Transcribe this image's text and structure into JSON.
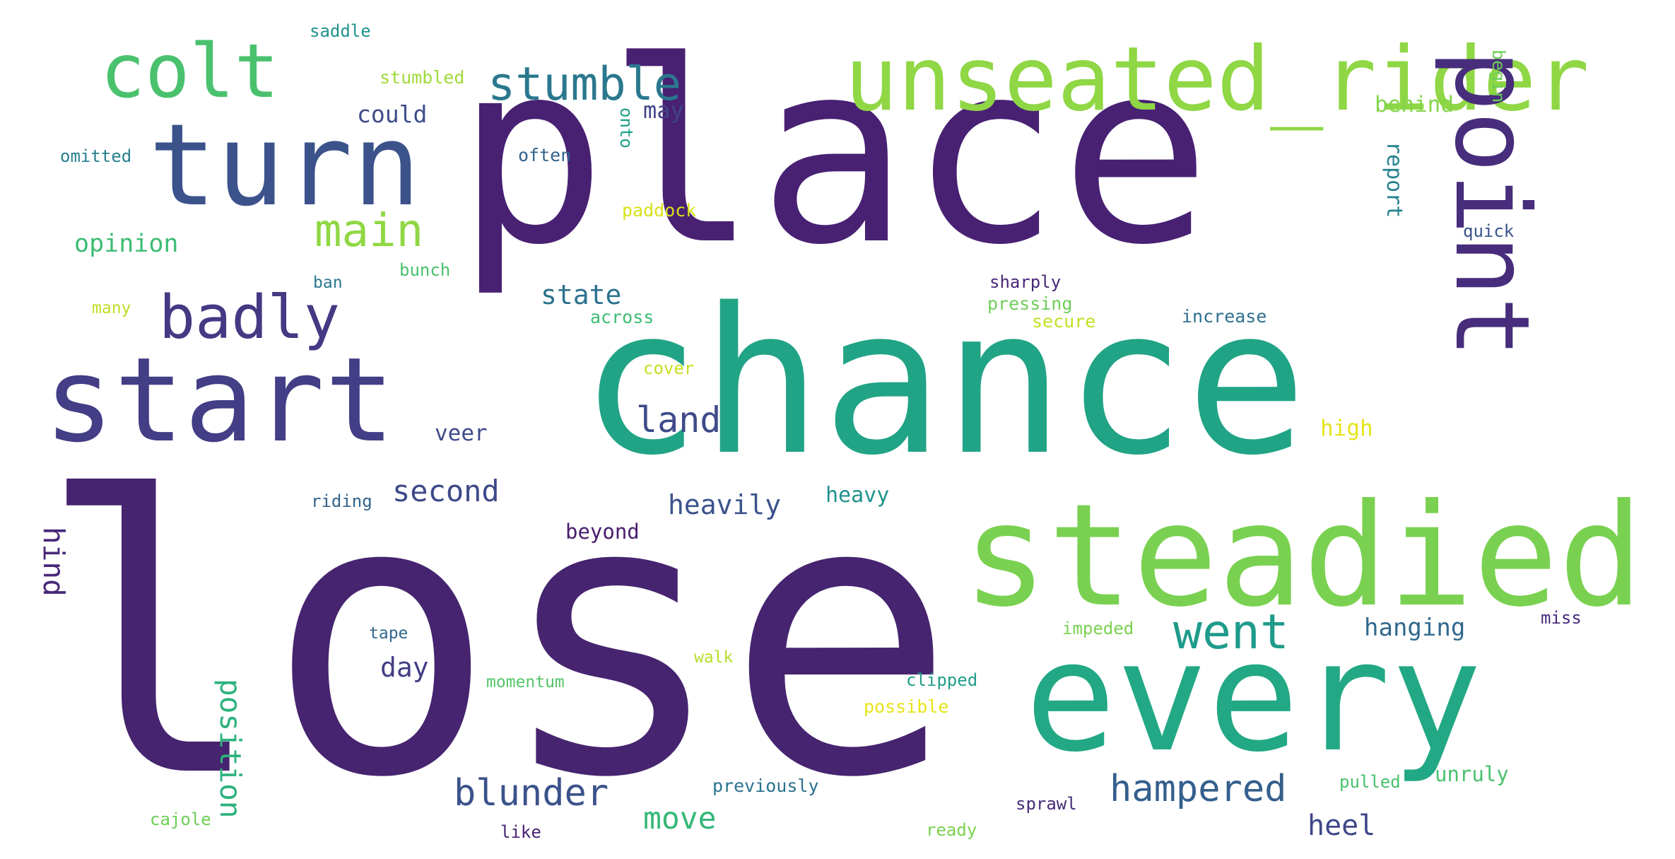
{
  "words": [
    {
      "text": "lose",
      "color": "#46246f"
    },
    {
      "text": "place",
      "color": "#482173"
    },
    {
      "text": "chance",
      "color": "#21a386"
    },
    {
      "text": "steadied",
      "color": "#7ad151"
    },
    {
      "text": "every",
      "color": "#22a884"
    },
    {
      "text": "start",
      "color": "#433e85"
    },
    {
      "text": "turn",
      "color": "#3b528b"
    },
    {
      "text": "unseated_rider",
      "color": "#8fd744"
    },
    {
      "text": "point",
      "color": "#472d7b"
    },
    {
      "text": "colt",
      "color": "#4ac16d"
    },
    {
      "text": "badly",
      "color": "#443983"
    },
    {
      "text": "stumble",
      "color": "#2a788e"
    },
    {
      "text": "main",
      "color": "#8fd744"
    },
    {
      "text": "went",
      "color": "#1e9b8a"
    },
    {
      "text": "land",
      "color": "#3e4a89"
    },
    {
      "text": "blunder",
      "color": "#3b528b"
    },
    {
      "text": "hampered",
      "color": "#355f8d"
    },
    {
      "text": "position",
      "color": "#2db27d"
    },
    {
      "text": "move",
      "color": "#35b779"
    },
    {
      "text": "second",
      "color": "#3e4989"
    },
    {
      "text": "heavily",
      "color": "#3b528b"
    },
    {
      "text": "hind",
      "color": "#482878"
    },
    {
      "text": "heel",
      "color": "#3f4788"
    },
    {
      "text": "state",
      "color": "#2c728e"
    },
    {
      "text": "hanging",
      "color": "#31688e"
    },
    {
      "text": "day",
      "color": "#433e85"
    },
    {
      "text": "could",
      "color": "#3e4c8a"
    },
    {
      "text": "may",
      "color": "#414487"
    },
    {
      "text": "opinion",
      "color": "#3dbc74"
    },
    {
      "text": "behind",
      "color": "#84d44b"
    },
    {
      "text": "report",
      "color": "#26828e"
    },
    {
      "text": "heavy",
      "color": "#20928c"
    },
    {
      "text": "veer",
      "color": "#3e4a89"
    },
    {
      "text": "high",
      "color": "#e5e419"
    },
    {
      "text": "beyond",
      "color": "#481c6e"
    },
    {
      "text": "unruly",
      "color": "#4ac16d"
    },
    {
      "text": "saddle",
      "color": "#20928c"
    },
    {
      "text": "stumbled",
      "color": "#a0da39"
    },
    {
      "text": "often",
      "color": "#33638d"
    },
    {
      "text": "onto",
      "color": "#1fa188"
    },
    {
      "text": "omitted",
      "color": "#277f8e"
    },
    {
      "text": "paddock",
      "color": "#d8e219"
    },
    {
      "text": "begin",
      "color": "#6ece58"
    },
    {
      "text": "quick",
      "color": "#3b528b"
    },
    {
      "text": "bunch",
      "color": "#4ac16d"
    },
    {
      "text": "ban",
      "color": "#2a788e"
    },
    {
      "text": "many",
      "color": "#bddf26"
    },
    {
      "text": "across",
      "color": "#3dbc74"
    },
    {
      "text": "sharply",
      "color": "#482878"
    },
    {
      "text": "pressing",
      "color": "#6ece58"
    },
    {
      "text": "secure",
      "color": "#c2df23"
    },
    {
      "text": "increase",
      "color": "#2d708e"
    },
    {
      "text": "cover",
      "color": "#c8e020"
    },
    {
      "text": "riding",
      "color": "#33638d"
    },
    {
      "text": "impeded",
      "color": "#7ad151"
    },
    {
      "text": "miss",
      "color": "#472a7a"
    },
    {
      "text": "tape",
      "color": "#31688e"
    },
    {
      "text": "walk",
      "color": "#b5de2b"
    },
    {
      "text": "momentum",
      "color": "#54c568"
    },
    {
      "text": "clipped",
      "color": "#1f9e89"
    },
    {
      "text": "possible",
      "color": "#e7e419"
    },
    {
      "text": "previously",
      "color": "#2c728e"
    },
    {
      "text": "pulled",
      "color": "#4ac16d"
    },
    {
      "text": "sprawl",
      "color": "#472d7b"
    },
    {
      "text": "cajole",
      "color": "#6ece58"
    },
    {
      "text": "like",
      "color": "#482475"
    },
    {
      "text": "ready",
      "color": "#7ad151"
    }
  ]
}
